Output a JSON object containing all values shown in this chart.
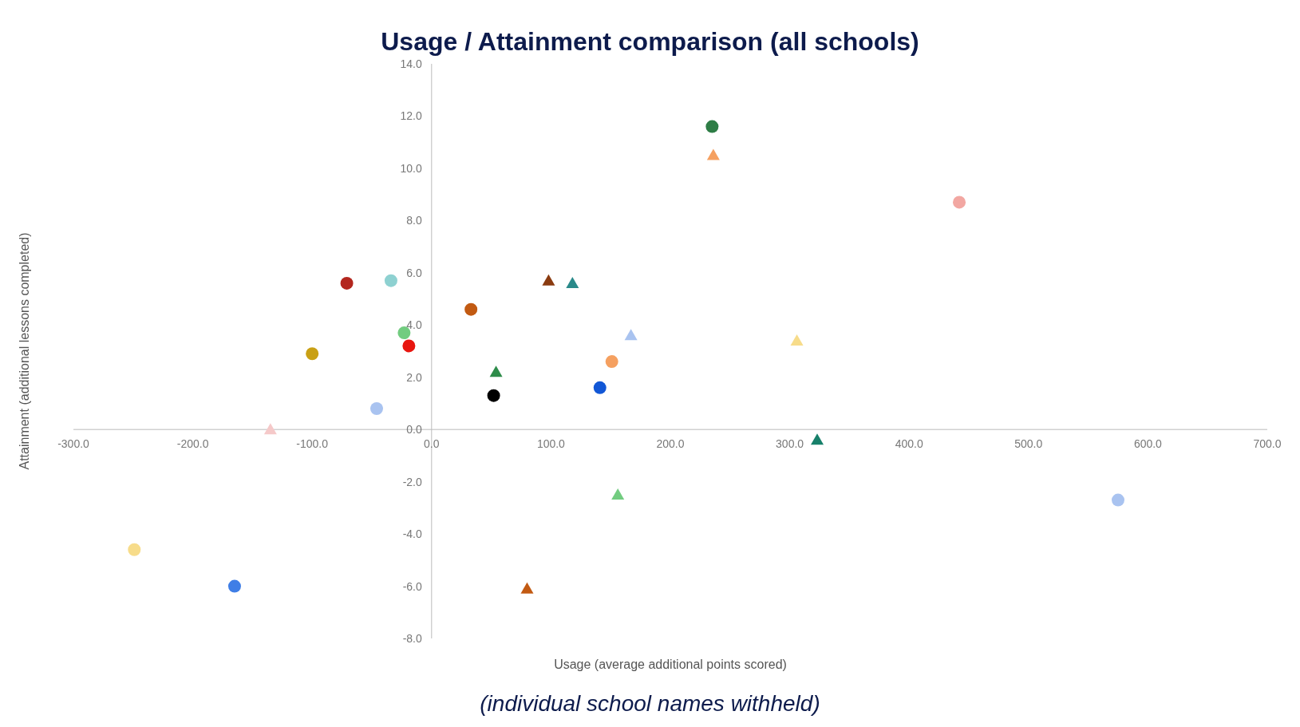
{
  "chart_data": {
    "type": "scatter",
    "title": "Usage / Attainment comparison (all schools)",
    "xlabel": "Usage (average additional points scored)",
    "ylabel": "Attainment (additional lessons completed)",
    "annotations": [
      "(individual school names withheld)"
    ],
    "xlim": [
      -300,
      700
    ],
    "ylim": [
      -8,
      14
    ],
    "xticks": [
      {
        "value": -300,
        "label": "-300.0"
      },
      {
        "value": -200,
        "label": "-200.0"
      },
      {
        "value": -100,
        "label": "-100.0"
      },
      {
        "value": 0,
        "label": "0.0"
      },
      {
        "value": 100,
        "label": "100.0"
      },
      {
        "value": 200,
        "label": "200.0"
      },
      {
        "value": 300,
        "label": "300.0"
      },
      {
        "value": 400,
        "label": "400.0"
      },
      {
        "value": 500,
        "label": "500.0"
      },
      {
        "value": 600,
        "label": "600.0"
      },
      {
        "value": 700,
        "label": "700.0"
      }
    ],
    "yticks": [
      {
        "value": -8,
        "label": "-8.0"
      },
      {
        "value": -6,
        "label": "-6.0"
      },
      {
        "value": -4,
        "label": "-4.0"
      },
      {
        "value": -2,
        "label": "-2.0"
      },
      {
        "value": 0,
        "label": "0.0"
      },
      {
        "value": 2,
        "label": "2.0"
      },
      {
        "value": 4,
        "label": "4.0"
      },
      {
        "value": 6,
        "label": "6.0"
      },
      {
        "value": 8,
        "label": "8.0"
      },
      {
        "value": 10,
        "label": "10.0"
      },
      {
        "value": 12,
        "label": "12.0"
      },
      {
        "value": 14,
        "label": "14.0"
      }
    ],
    "grid": false,
    "series": [
      {
        "marker": "circle",
        "x": [
          235,
          442,
          -71,
          -34,
          33,
          -100,
          -23,
          -19,
          -46,
          52,
          151,
          141,
          575,
          -249,
          -165
        ],
        "values": [
          11.6,
          8.7,
          5.6,
          5.7,
          4.6,
          2.9,
          3.7,
          3.2,
          0.8,
          1.3,
          2.6,
          1.6,
          -2.7,
          -4.6,
          -6.0
        ],
        "colors": [
          "#2e7d46",
          "#f2a7a2",
          "#b3261e",
          "#8ed1d1",
          "#c25a12",
          "#c9a014",
          "#72cc80",
          "#e8150f",
          "#a9c3f0",
          "#000000",
          "#f5a060",
          "#1257d6",
          "#a9c3f0",
          "#f7dc8a",
          "#3f7ee6"
        ]
      },
      {
        "marker": "triangle",
        "x": [
          236,
          98,
          118,
          167,
          306,
          54,
          -135,
          323,
          156,
          80
        ],
        "values": [
          10.5,
          5.7,
          5.6,
          3.6,
          3.4,
          2.2,
          0,
          -0.4,
          -2.5,
          -6.1
        ],
        "colors": [
          "#f5a060",
          "#8a3b10",
          "#2a8a8a",
          "#a9c3f0",
          "#f7dc8a",
          "#2e8c4a",
          "#f5c9c9",
          "#17806a",
          "#72cc80",
          "#c25a12"
        ]
      }
    ]
  }
}
